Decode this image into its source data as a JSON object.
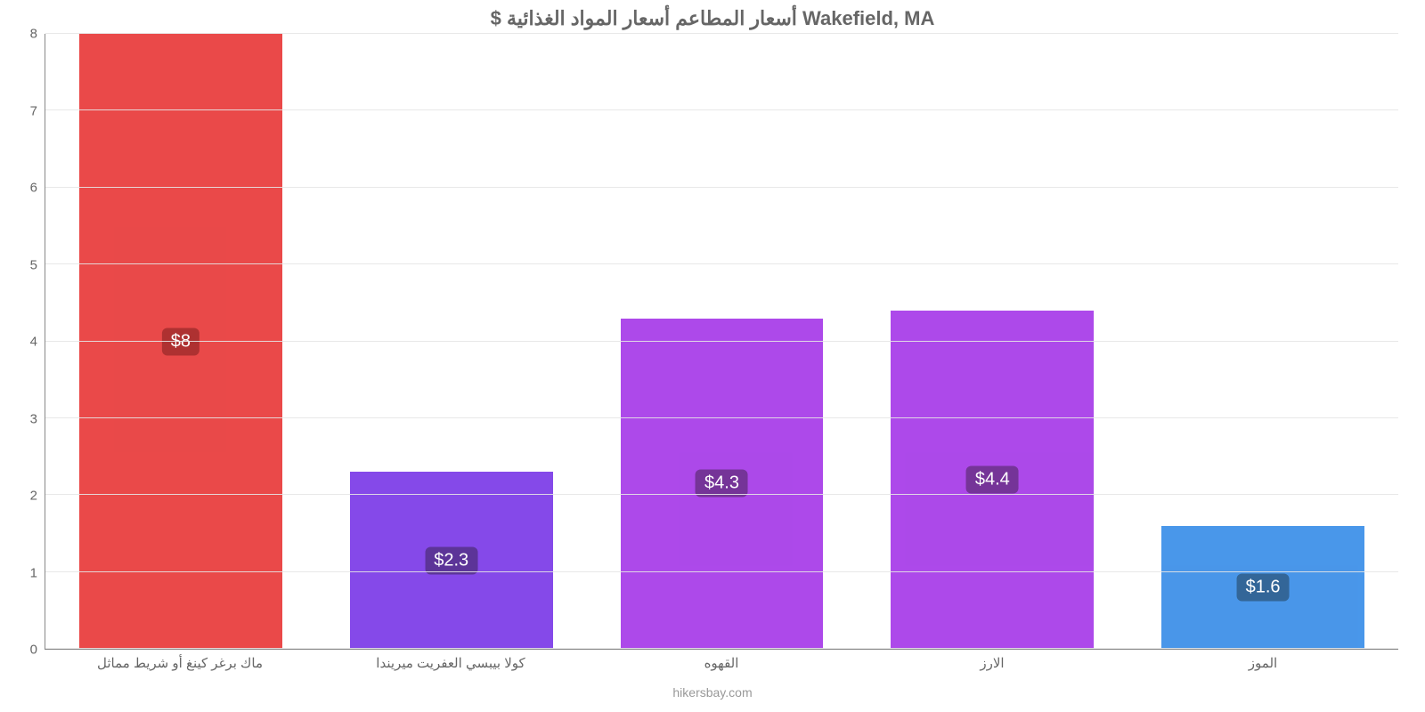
{
  "chart": {
    "type": "bar",
    "title": "$ أسعار المطاعم أسعار المواد الغذائية Wakefield, MA",
    "title_fontsize": 22,
    "title_color": "#666666",
    "background_color": "#ffffff",
    "grid_color": "#e6e6e6",
    "axis_color": "#888888",
    "tick_color": "#666666",
    "tick_fontsize": 15,
    "y": {
      "min": 0,
      "max": 8,
      "step": 1
    },
    "bar_width_pct": 15,
    "gap_pct": 5,
    "categories": [
      "ماك برغر كينغ أو شريط مماثل",
      "كولا بيبسي العفريت ميريندا",
      "القهوه",
      "الارز",
      "الموز"
    ],
    "values": [
      8,
      2.3,
      4.3,
      4.4,
      1.6
    ],
    "value_labels": [
      "$8",
      "$2.3",
      "$4.3",
      "$4.4",
      "$1.6"
    ],
    "bar_colors": [
      "#e83a3a",
      "#7b3ae8",
      "#a63ae8",
      "#a63ae8",
      "#3a8ee8"
    ],
    "label_bg_colors": [
      "#a82020",
      "#4f2390",
      "#6a2390",
      "#6a2390",
      "#225a90"
    ],
    "label_fontsize": 20,
    "footer": "hikersbay.com",
    "footer_color": "#999999",
    "footer_fontsize": 14
  }
}
